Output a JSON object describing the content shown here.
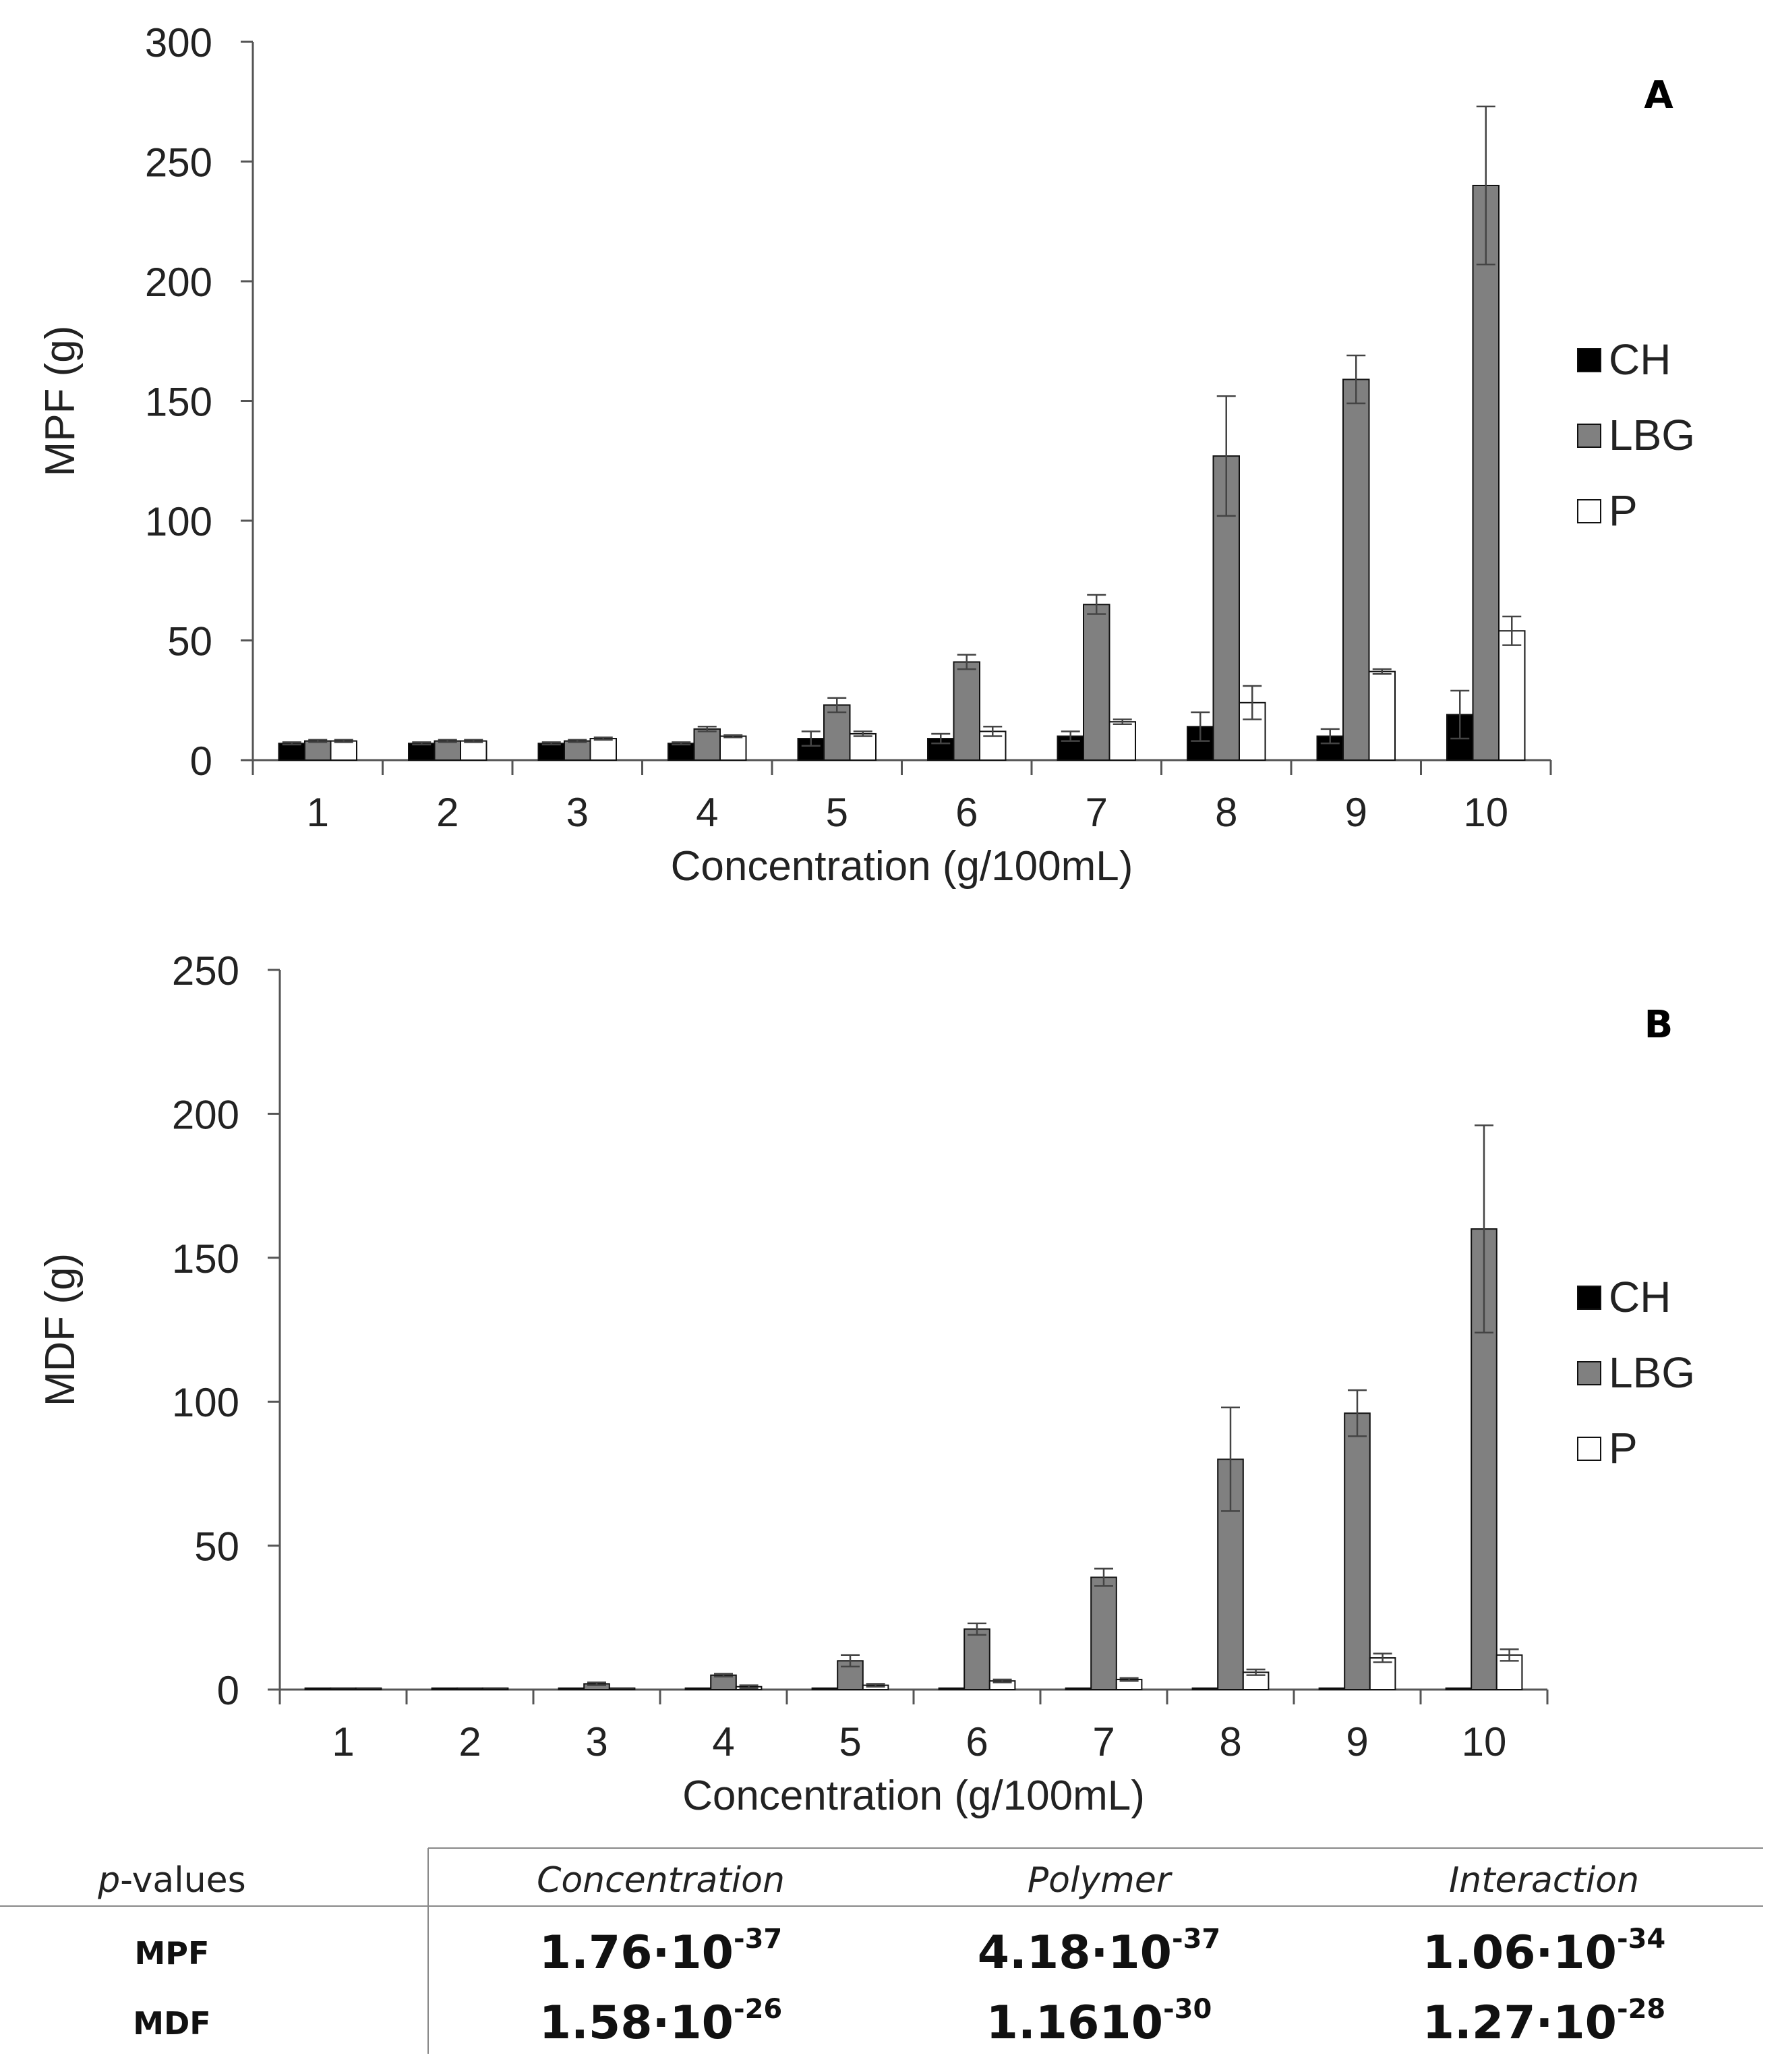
{
  "chart_data": [
    {
      "panel": "A",
      "type": "bar",
      "title": "",
      "xlabel": "Concentration (g/100mL)",
      "ylabel": "MPF (g)",
      "ylim": [
        0,
        300
      ],
      "yticks": [
        0,
        50,
        100,
        150,
        200,
        250,
        300
      ],
      "categories": [
        "1",
        "2",
        "3",
        "4",
        "5",
        "6",
        "7",
        "8",
        "9",
        "10"
      ],
      "legend_position": "right",
      "series": [
        {
          "name": "CH",
          "color": "#000000",
          "values": [
            7,
            7,
            7,
            7,
            9,
            9,
            10,
            14,
            10,
            19
          ],
          "errors": [
            0.5,
            0.5,
            0.5,
            0.5,
            3,
            2,
            2,
            6,
            3,
            10
          ]
        },
        {
          "name": "LBG",
          "color": "#808080",
          "values": [
            8,
            8,
            8,
            13,
            23,
            41,
            65,
            127,
            159,
            240
          ],
          "errors": [
            0.5,
            0.5,
            0.5,
            1,
            3,
            3,
            4,
            25,
            10,
            33
          ]
        },
        {
          "name": "P",
          "color": "#ffffff",
          "values": [
            8,
            8,
            9,
            10,
            11,
            12,
            16,
            24,
            37,
            54
          ],
          "errors": [
            0.5,
            0.5,
            0.5,
            0.5,
            1,
            2,
            1,
            7,
            1,
            6
          ]
        }
      ]
    },
    {
      "panel": "B",
      "type": "bar",
      "title": "",
      "xlabel": "Concentration (g/100mL)",
      "ylabel": "MDF (g)",
      "ylim": [
        0,
        250
      ],
      "yticks": [
        0,
        50,
        100,
        150,
        200,
        250
      ],
      "categories": [
        "1",
        "2",
        "3",
        "4",
        "5",
        "6",
        "7",
        "8",
        "9",
        "10"
      ],
      "legend_position": "right",
      "series": [
        {
          "name": "CH",
          "color": "#000000",
          "values": [
            0.5,
            0.5,
            0.5,
            0.5,
            0.5,
            0.5,
            0.5,
            0.5,
            0.5,
            0.5
          ],
          "errors": [
            0,
            0,
            0,
            0,
            0,
            0,
            0,
            0,
            0,
            0
          ]
        },
        {
          "name": "LBG",
          "color": "#808080",
          "values": [
            0.5,
            0.5,
            2,
            5,
            10,
            21,
            39,
            80,
            96,
            160
          ],
          "errors": [
            0,
            0,
            0.5,
            0.5,
            2,
            2,
            3,
            18,
            8,
            36
          ]
        },
        {
          "name": "P",
          "color": "#ffffff",
          "values": [
            0.5,
            0.5,
            0.5,
            1,
            1.5,
            3,
            3.5,
            6,
            11,
            12
          ],
          "errors": [
            0,
            0,
            0,
            0.5,
            0.5,
            0.5,
            0.5,
            1,
            1.5,
            2
          ]
        }
      ]
    }
  ],
  "table": {
    "header_label": "-values",
    "header_label_italic": "p",
    "columns": [
      "Concentration",
      "Polymer",
      "Interaction"
    ],
    "rows": [
      {
        "label": "MPF",
        "cells": [
          {
            "mantissa": "1.76·10",
            "exp": "-37"
          },
          {
            "mantissa": "4.18·10",
            "exp": "-37"
          },
          {
            "mantissa": "1.06·10",
            "exp": "-34"
          }
        ]
      },
      {
        "label": "MDF",
        "cells": [
          {
            "mantissa": "1.58·10",
            "exp": "-26"
          },
          {
            "mantissa": "1.1610",
            "exp": "-30"
          },
          {
            "mantissa": "1.27·10",
            "exp": "-28"
          }
        ]
      }
    ]
  }
}
